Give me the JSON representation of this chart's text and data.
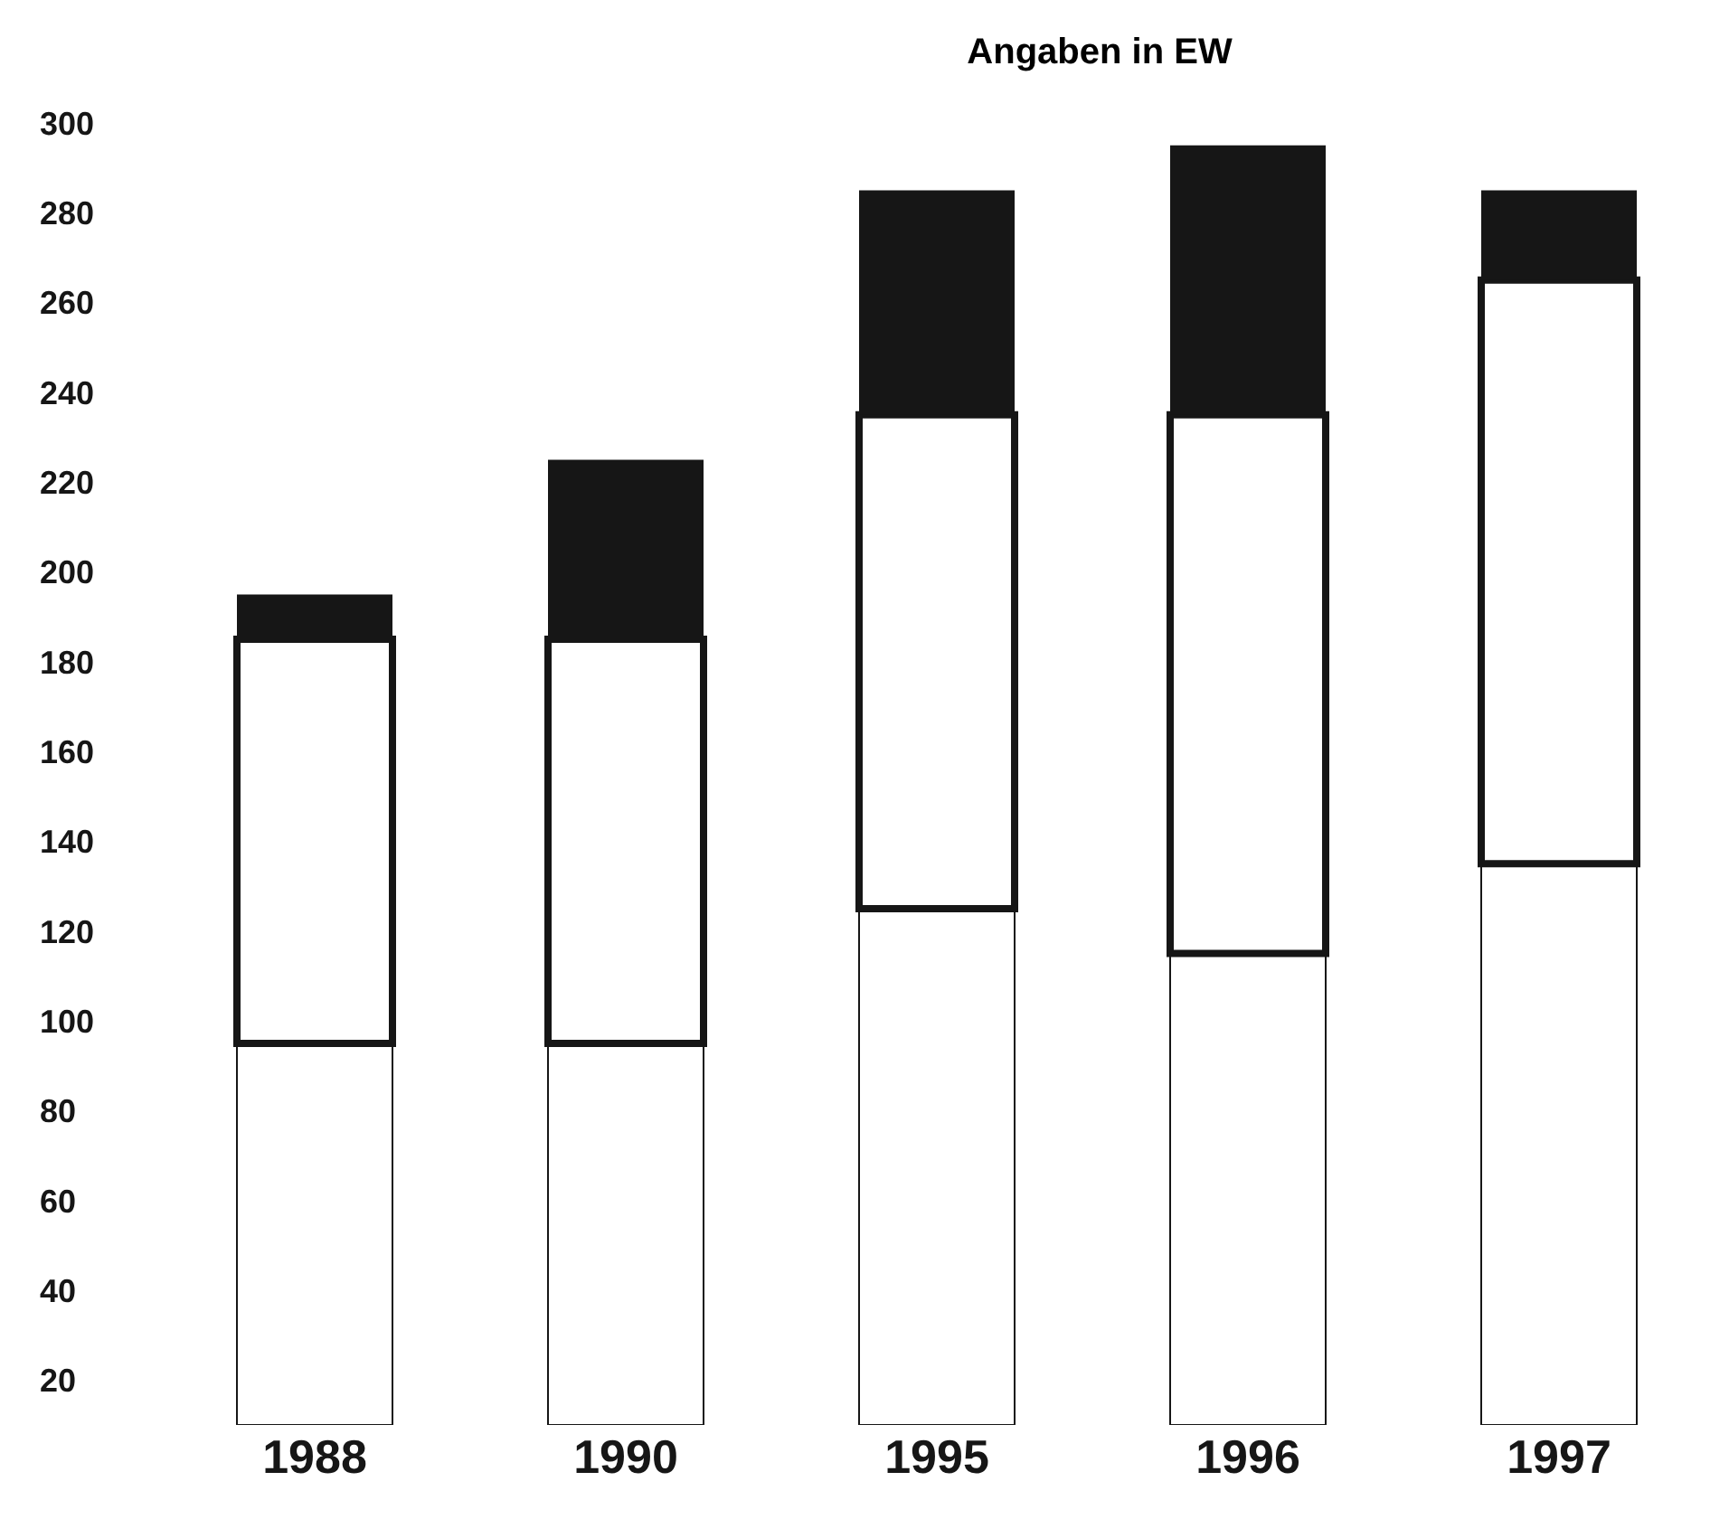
{
  "chart_data": {
    "type": "bar",
    "title": "Angaben in EW",
    "stacked": true,
    "categories": [
      "1988",
      "1990",
      "1995",
      "1996",
      "1997"
    ],
    "series": [
      {
        "color": "#ffffff",
        "values": [
          95,
          95,
          125,
          115,
          135
        ]
      },
      {
        "color": "#ffffff",
        "values": [
          90,
          90,
          110,
          120,
          130
        ]
      },
      {
        "color": "#161616",
        "values": [
          10,
          40,
          50,
          60,
          20
        ]
      }
    ],
    "ylim": [
      10,
      300
    ],
    "yticks": [
      20,
      40,
      60,
      80,
      100,
      120,
      140,
      160,
      180,
      200,
      220,
      240,
      260,
      280,
      300
    ],
    "grid": false,
    "legend": false
  }
}
